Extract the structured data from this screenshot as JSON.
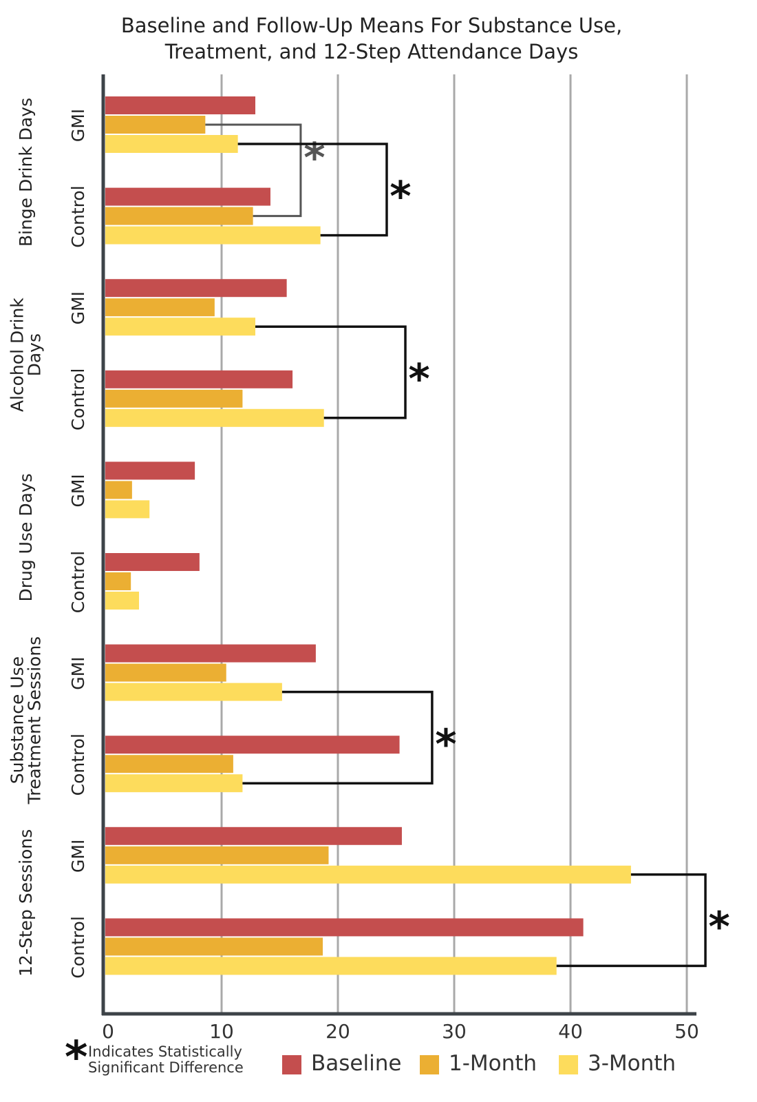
{
  "chart_data": {
    "type": "bar",
    "orientation": "horizontal",
    "title": "Baseline and Follow-Up Means For Substance Use, Treatment, and 12-Step Attendance Days",
    "title_lines": [
      "Baseline and Follow-Up Means For Substance Use,",
      "Treatment, and 12-Step Attendance Days"
    ],
    "xlim": [
      0,
      52
    ],
    "xticks": [
      0,
      10,
      20,
      30,
      40,
      50
    ],
    "grid": true,
    "series": [
      {
        "name": "Baseline",
        "color": "#c44e4e"
      },
      {
        "name": "1-Month",
        "color": "#ebaf33"
      },
      {
        "name": "3-Month",
        "color": "#fddc5c"
      }
    ],
    "groups": [
      {
        "label": "Binge Drink Days",
        "label_lines": [
          "Binge Drink Days"
        ],
        "conditions": [
          {
            "name": "GMI",
            "values": [
              12.9,
              8.6,
              11.4
            ]
          },
          {
            "name": "Control",
            "values": [
              14.2,
              12.7,
              18.5
            ]
          }
        ],
        "significance": [
          {
            "from": {
              "condition": "GMI",
              "series": "1-Month"
            },
            "to": {
              "condition": "Control",
              "series": "1-Month"
            },
            "bracket_x": 16.8,
            "color": "#555555",
            "label": "*"
          },
          {
            "from": {
              "condition": "GMI",
              "series": "3-Month"
            },
            "to": {
              "condition": "Control",
              "series": "3-Month"
            },
            "bracket_x": 24.2,
            "color": "#111111",
            "label": "*"
          }
        ]
      },
      {
        "label": "Alcohol Drink Days",
        "label_lines": [
          "Alcohol Drink",
          "Days"
        ],
        "conditions": [
          {
            "name": "GMI",
            "values": [
              15.6,
              9.4,
              12.9
            ]
          },
          {
            "name": "Control",
            "values": [
              16.1,
              11.8,
              18.8
            ]
          }
        ],
        "significance": [
          {
            "from": {
              "condition": "GMI",
              "series": "3-Month"
            },
            "to": {
              "condition": "Control",
              "series": "3-Month"
            },
            "bracket_x": 25.8,
            "color": "#111111",
            "label": "*"
          }
        ]
      },
      {
        "label": "Drug Use Days",
        "label_lines": [
          "Drug Use Days"
        ],
        "conditions": [
          {
            "name": "GMI",
            "values": [
              7.7,
              2.3,
              3.8
            ]
          },
          {
            "name": "Control",
            "values": [
              8.1,
              2.2,
              2.9
            ]
          }
        ],
        "significance": []
      },
      {
        "label": "Substance Use Treatment Sessions",
        "label_lines": [
          "Substance Use",
          "Treatment Sessions"
        ],
        "conditions": [
          {
            "name": "GMI",
            "values": [
              18.1,
              10.4,
              15.2
            ]
          },
          {
            "name": "Control",
            "values": [
              25.3,
              11.0,
              11.8
            ]
          }
        ],
        "significance": [
          {
            "from": {
              "condition": "GMI",
              "series": "3-Month"
            },
            "to": {
              "condition": "Control",
              "series": "3-Month"
            },
            "bracket_x": 28.1,
            "color": "#111111",
            "label": "*"
          }
        ]
      },
      {
        "label": "12-Step Sessions",
        "label_lines": [
          "12-Step Sessions"
        ],
        "conditions": [
          {
            "name": "GMI",
            "values": [
              25.5,
              19.2,
              45.2
            ]
          },
          {
            "name": "Control",
            "values": [
              41.1,
              18.7,
              38.8
            ]
          }
        ],
        "significance": [
          {
            "from": {
              "condition": "GMI",
              "series": "3-Month"
            },
            "to": {
              "condition": "Control",
              "series": "3-Month"
            },
            "bracket_x": 51.6,
            "color": "#111111",
            "label": "*"
          }
        ]
      }
    ],
    "significance_note": {
      "symbol": "*",
      "lines": [
        "Indicates Statistically",
        "Significant Difference"
      ]
    },
    "legend_position": "bottom"
  }
}
